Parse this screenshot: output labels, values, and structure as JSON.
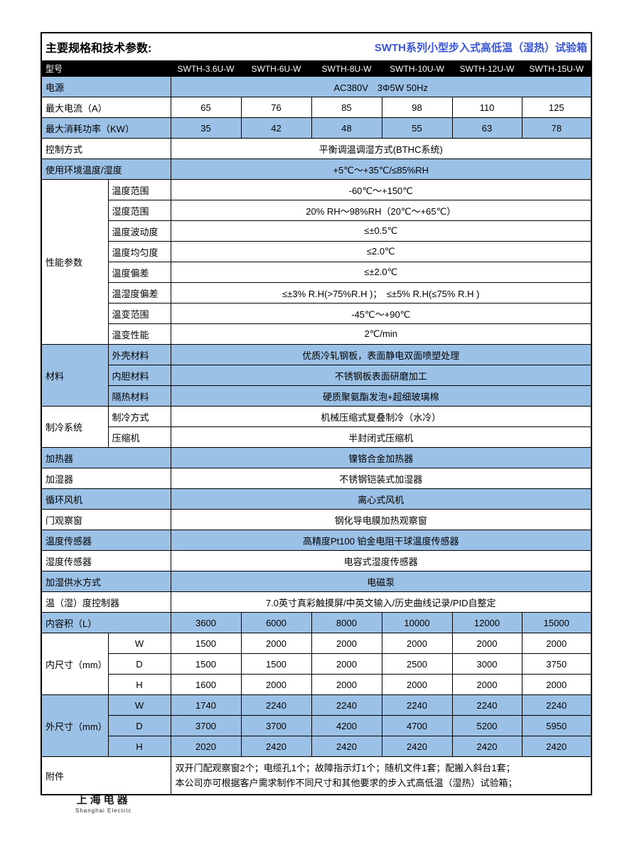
{
  "header": {
    "title_left": "主要规格和技术参数:",
    "title_right": "SWTH系列小型步入式高低温（湿热）试验箱"
  },
  "colors": {
    "row_blue": "#9CC1E6",
    "title_blue": "#3A56D4",
    "model_row_bg": "#000000",
    "model_row_text": "#FFFFFF"
  },
  "table": {
    "model_row": {
      "label": "型号",
      "models": [
        "SWTH-3.6U-W",
        "SWTH-6U-W",
        "SWTH-8U-W",
        "SWTH-10U-W",
        "SWTH-12U-W",
        "SWTH-15U-W"
      ]
    },
    "rows": [
      {
        "label": "电源",
        "value": "AC380V　3Φ5W 50Hz",
        "bg": "blue"
      },
      {
        "label": "最大电流（A）",
        "values": [
          "65",
          "76",
          "85",
          "98",
          "110",
          "125"
        ],
        "bg": "white"
      },
      {
        "label": "最大消耗功率（KW）",
        "values": [
          "35",
          "42",
          "48",
          "55",
          "63",
          "78"
        ],
        "bg": "blue"
      },
      {
        "label": "控制方式",
        "value": "平衡调温调湿方式(BTHC系统)",
        "bg": "white"
      },
      {
        "label": "使用环境温度/湿度",
        "value": "+5℃～+35℃/≤85%RH",
        "bg": "blue"
      },
      {
        "group": "性能参数",
        "span": 8,
        "sublabel": "温度范围",
        "value": "-60℃～+150℃",
        "bg": "white"
      },
      {
        "sublabel": "湿度范围",
        "value": "20% RH～98%RH（20℃～+65℃）",
        "bg": "white"
      },
      {
        "sublabel": "温度波动度",
        "value": "≤±0.5℃",
        "bg": "white"
      },
      {
        "sublabel": "温度均匀度",
        "value": "≤2.0℃",
        "bg": "white"
      },
      {
        "sublabel": "温度偏差",
        "value": "≤±2.0℃",
        "bg": "white"
      },
      {
        "sublabel": "温湿度偏差",
        "value": "≤±3% R.H(>75%R.H )；　≤±5% R.H(≤75% R.H )",
        "bg": "white"
      },
      {
        "sublabel": "温变范围",
        "value": "-45℃～+90℃",
        "bg": "white"
      },
      {
        "sublabel": "温变性能",
        "value": "2℃/min",
        "bg": "white"
      },
      {
        "group": "材料",
        "span": 3,
        "sublabel": "外壳材料",
        "value": "优质冷轧钢板，表面静电双面喷塑处理",
        "bg": "blue"
      },
      {
        "sublabel": "内胆材料",
        "value": "不锈钢板表面研磨加工",
        "bg": "blue"
      },
      {
        "sublabel": "隔热材料",
        "value": "硬质聚氨酯发泡+超细玻璃棉",
        "bg": "blue"
      },
      {
        "group": "制冷系统",
        "span": 2,
        "sublabel": "制冷方式",
        "value": "机械压缩式复叠制冷（水冷）",
        "bg": "white"
      },
      {
        "sublabel": "压缩机",
        "value": "半封闭式压缩机",
        "bg": "white"
      },
      {
        "label": "加热器",
        "value": "镍铬合金加热器",
        "bg": "blue"
      },
      {
        "label": "加湿器",
        "value": "不锈钢铠装式加湿器",
        "bg": "white"
      },
      {
        "label": "循环风机",
        "value": "离心式风机",
        "bg": "blue"
      },
      {
        "label": "门观察窗",
        "value": "钢化导电膜加热观察窗",
        "bg": "white"
      },
      {
        "label": "温度传感器",
        "value": "高精度Pt100 铂金电阻干球温度传感器",
        "bg": "blue"
      },
      {
        "label": "湿度传感器",
        "value": "电容式湿度传感器",
        "bg": "white"
      },
      {
        "label": "加湿供水方式",
        "value": "电磁泵",
        "bg": "blue"
      },
      {
        "label": "温（湿）度控制器",
        "value": "7.0英寸真彩触摸屏/中英文输入/历史曲线记录/PID自整定",
        "bg": "white"
      },
      {
        "label": "内容积（L）",
        "values": [
          "3600",
          "6000",
          "8000",
          "10000",
          "12000",
          "15000"
        ],
        "bg": "blue"
      },
      {
        "group": "内尺寸（mm）",
        "span": 3,
        "sublabel": "W",
        "values": [
          "1500",
          "2000",
          "2000",
          "2000",
          "2000",
          "2000"
        ],
        "bg": "white"
      },
      {
        "sublabel": "D",
        "values": [
          "1500",
          "1500",
          "2000",
          "2500",
          "3000",
          "3750"
        ],
        "bg": "white"
      },
      {
        "sublabel": "H",
        "values": [
          "1600",
          "2000",
          "2000",
          "2000",
          "2000",
          "2000"
        ],
        "bg": "white"
      },
      {
        "group": "外尺寸（mm）",
        "span": 3,
        "sublabel": "W",
        "values": [
          "1740",
          "2240",
          "2240",
          "2240",
          "2240",
          "2240"
        ],
        "bg": "blue"
      },
      {
        "sublabel": "D",
        "values": [
          "3700",
          "3700",
          "4200",
          "4700",
          "5200",
          "5950"
        ],
        "bg": "blue"
      },
      {
        "sublabel": "H",
        "values": [
          "2020",
          "2420",
          "2420",
          "2420",
          "2420",
          "2420"
        ],
        "bg": "blue"
      },
      {
        "label": "附件",
        "value_lines": [
          "双开门配观察窗2个；电缆孔1个；故障指示灯1个；随机文件1套；配搬入斜台1套；",
          "本公司亦可根据客户需求制作不同尺寸和其他要求的步入式高低温（湿热）试验箱；"
        ],
        "bg": "white",
        "tall": true
      }
    ]
  },
  "footer": {
    "logo_cn": "上海电器",
    "logo_en": "Shanghai  Electric"
  }
}
